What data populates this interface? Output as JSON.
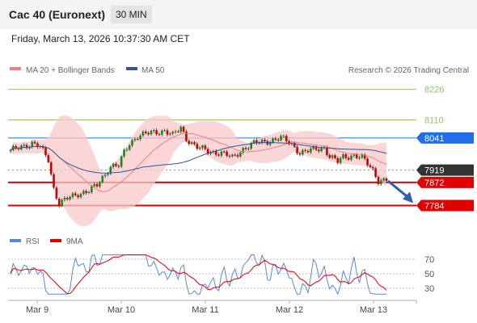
{
  "header": {
    "title": "Cac 40 (Euronext)",
    "timeframe": "30 MIN",
    "timestamp": "Friday, March 13, 2026 10:37:30 AM CET"
  },
  "credit": "Research © 2026 Trading Central",
  "legend": {
    "main": [
      "MA 20 + Bollinger Bands",
      "MA 50"
    ],
    "indicator": [
      "RSI",
      "9MA"
    ]
  },
  "colors": {
    "bollinger": "#f9c8c8",
    "ma20": "#f08080",
    "ma50": "#2f5597",
    "up": "#1a8a1a",
    "down": "#cc0000",
    "support": "#e00000",
    "resistance": "#8dc26b",
    "pivot": "#1e6fe8",
    "current": "#333333",
    "rsi": "#5c87d6",
    "rsi_ma": "#dd0000",
    "arrow": "#2e5fa8"
  },
  "chart_data": {
    "type": "candlestick",
    "x_labels": [
      "Mar 9",
      "Mar 10",
      "Mar 11",
      "Mar 12",
      "Mar 13"
    ],
    "y_range": [
      7755,
      8265
    ],
    "levels": [
      {
        "value": 8226,
        "label": "8226",
        "kind": "resistance"
      },
      {
        "value": 8110,
        "label": "8110",
        "kind": "resistance"
      },
      {
        "value": 8041,
        "label": "8041",
        "kind": "pivot"
      },
      {
        "value": 7919,
        "label": "7919",
        "kind": "current"
      },
      {
        "value": 7872,
        "label": "7872",
        "kind": "support"
      },
      {
        "value": 7784,
        "label": "7784",
        "kind": "support"
      }
    ],
    "anchors": [
      [
        0,
        7990
      ],
      [
        4,
        8010
      ],
      [
        8,
        8020
      ],
      [
        11,
        8005
      ],
      [
        14,
        7960
      ],
      [
        16,
        7850
      ],
      [
        18,
        7790
      ],
      [
        21,
        7810
      ],
      [
        25,
        7830
      ],
      [
        29,
        7840
      ],
      [
        32,
        7860
      ],
      [
        35,
        7905
      ],
      [
        37,
        7935
      ],
      [
        40,
        7935
      ],
      [
        42,
        7985
      ],
      [
        44,
        8020
      ],
      [
        47,
        8050
      ],
      [
        52,
        8060
      ],
      [
        57,
        8070
      ],
      [
        60,
        8050
      ],
      [
        63,
        8080
      ],
      [
        65,
        8040
      ],
      [
        69,
        8005
      ],
      [
        73,
        7990
      ],
      [
        78,
        7985
      ],
      [
        82,
        7965
      ],
      [
        86,
        8000
      ],
      [
        90,
        8020
      ],
      [
        95,
        8030
      ],
      [
        100,
        8040
      ],
      [
        104,
        8020
      ],
      [
        107,
        7985
      ],
      [
        110,
        7990
      ],
      [
        113,
        8000
      ],
      [
        116,
        8005
      ],
      [
        118,
        7970
      ],
      [
        121,
        7950
      ],
      [
        123,
        7970
      ],
      [
        127,
        7975
      ],
      [
        130,
        7965
      ],
      [
        134,
        7920
      ],
      [
        136,
        7880
      ]
    ],
    "rsi": {
      "levels": [
        70,
        50,
        30
      ],
      "range": [
        20,
        80
      ]
    }
  }
}
